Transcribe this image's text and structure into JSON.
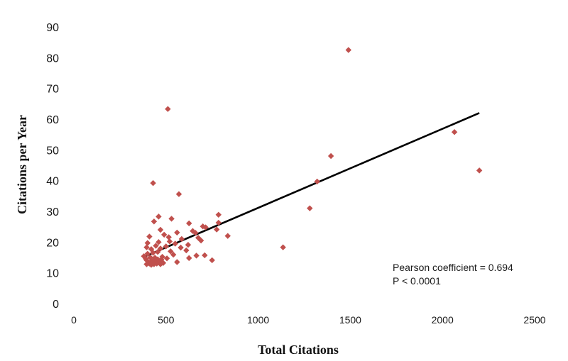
{
  "chart_data": {
    "type": "scatter",
    "xlabel": "Total Citations",
    "ylabel": "Citations per Year",
    "xlim": [
      0,
      2500
    ],
    "ylim": [
      0,
      90
    ],
    "xticks": [
      "0",
      "500",
      "1000",
      "1500",
      "2000",
      "2500"
    ],
    "yticks": [
      "0",
      "10",
      "20",
      "30",
      "40",
      "50",
      "60",
      "70",
      "80",
      "90"
    ],
    "grid": false,
    "marker_color": "#c0504d",
    "trendline_color": "#000000",
    "trendline": {
      "x": [
        380,
        2200
      ],
      "y": [
        15.2,
        62.0
      ]
    },
    "annotations": [
      "Pearson coefficient = 0.694",
      "P < 0.0001"
    ],
    "points": [
      [
        1490,
        82.5
      ],
      [
        510,
        63.3
      ],
      [
        2065,
        55.8
      ],
      [
        1395,
        48.0
      ],
      [
        2200,
        43.3
      ],
      [
        1320,
        39.7
      ],
      [
        430,
        39.2
      ],
      [
        570,
        35.6
      ],
      [
        1280,
        31.0
      ],
      [
        785,
        28.9
      ],
      [
        460,
        28.3
      ],
      [
        530,
        27.6
      ],
      [
        435,
        26.7
      ],
      [
        785,
        26.3
      ],
      [
        625,
        26.1
      ],
      [
        700,
        25.1
      ],
      [
        715,
        24.8
      ],
      [
        775,
        24.1
      ],
      [
        470,
        24.0
      ],
      [
        645,
        23.6
      ],
      [
        560,
        23.1
      ],
      [
        660,
        23.0
      ],
      [
        490,
        22.4
      ],
      [
        835,
        22.0
      ],
      [
        410,
        21.8
      ],
      [
        515,
        21.6
      ],
      [
        675,
        21.4
      ],
      [
        585,
        21.0
      ],
      [
        690,
        20.5
      ],
      [
        520,
        20.2
      ],
      [
        460,
        20.0
      ],
      [
        400,
        19.7
      ],
      [
        550,
        19.5
      ],
      [
        620,
        19.1
      ],
      [
        445,
        18.8
      ],
      [
        500,
        18.6
      ],
      [
        395,
        18.3
      ],
      [
        1135,
        18.3
      ],
      [
        580,
        18.2
      ],
      [
        470,
        17.9
      ],
      [
        420,
        17.7
      ],
      [
        610,
        17.3
      ],
      [
        525,
        17.0
      ],
      [
        455,
        16.8
      ],
      [
        430,
        16.5
      ],
      [
        400,
        16.2
      ],
      [
        540,
        15.9
      ],
      [
        710,
        15.7
      ],
      [
        665,
        15.6
      ],
      [
        380,
        15.4
      ],
      [
        480,
        15.2
      ],
      [
        415,
        15.0
      ],
      [
        440,
        14.9
      ],
      [
        625,
        14.8
      ],
      [
        505,
        14.7
      ],
      [
        390,
        14.6
      ],
      [
        455,
        14.4
      ],
      [
        475,
        14.3
      ],
      [
        395,
        14.1
      ],
      [
        750,
        14.1
      ],
      [
        430,
        14.0
      ],
      [
        420,
        13.8
      ],
      [
        440,
        13.6
      ],
      [
        560,
        13.5
      ],
      [
        405,
        13.4
      ],
      [
        465,
        13.3
      ],
      [
        425,
        13.2
      ],
      [
        485,
        13.2
      ],
      [
        410,
        13.0
      ],
      [
        450,
        13.0
      ],
      [
        395,
        12.8
      ],
      [
        435,
        12.8
      ],
      [
        470,
        12.8
      ],
      [
        420,
        12.6
      ]
    ]
  }
}
